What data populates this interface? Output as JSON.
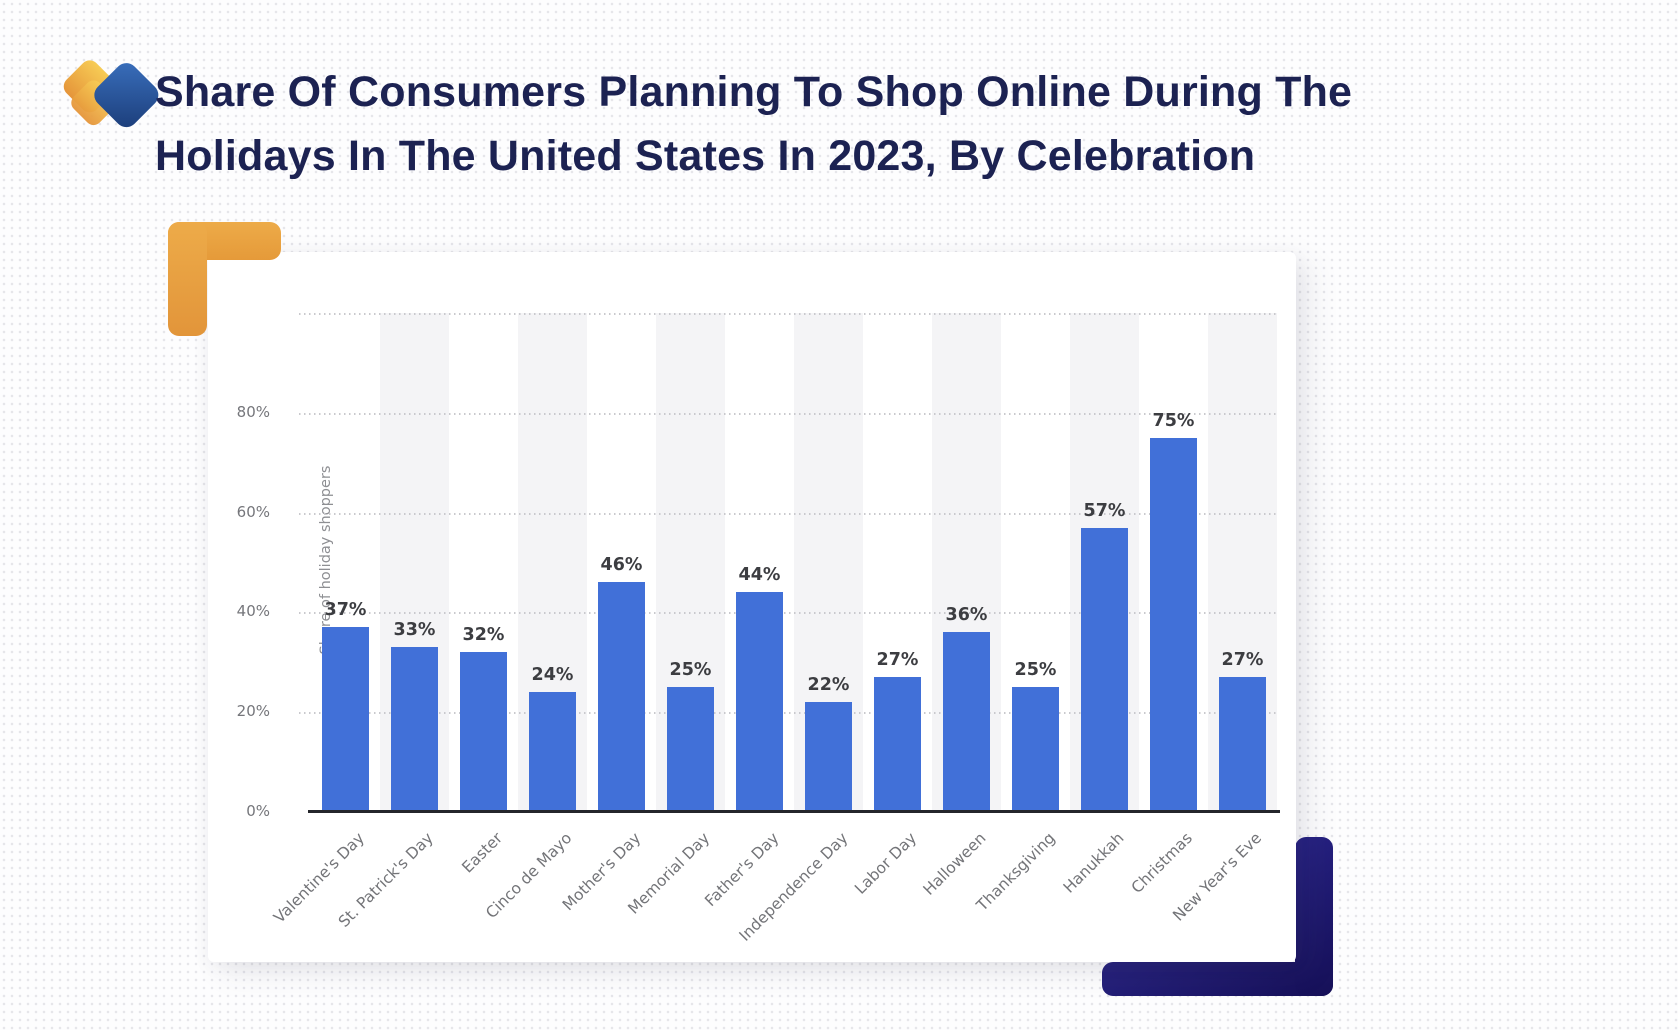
{
  "header": {
    "title_line1": "Share Of Consumers Planning To Shop Online During The",
    "title_line2": "Holidays In The United States In 2023, By Celebration",
    "title_color": "#1c2252",
    "logo_colors": {
      "yellow_top": "#F7CC55",
      "yellow_bottom": "#E5953A",
      "blue_top": "#3A70BE",
      "blue_bottom": "#1B3C78"
    }
  },
  "decorations": {
    "orange_accent": "#E79F3D",
    "navy_accent": "#1d1870"
  },
  "chart_data": {
    "type": "bar",
    "title": "",
    "categories": [
      "Valentine's Day",
      "St. Patrick's Day",
      "Easter",
      "Cinco de Mayo",
      "Mother's Day",
      "Memorial Day",
      "Father's Day",
      "Independence Day",
      "Labor Day",
      "Halloween",
      "Thanksgiving",
      "Hanukkah",
      "Christmas",
      "New Year's Eve"
    ],
    "values": [
      37,
      33,
      32,
      24,
      46,
      25,
      44,
      22,
      27,
      36,
      25,
      57,
      75,
      27
    ],
    "value_labels": [
      "37%",
      "33%",
      "32%",
      "24%",
      "46%",
      "25%",
      "44%",
      "22%",
      "27%",
      "36%",
      "25%",
      "57%",
      "75%",
      "27%"
    ],
    "xlabel": "",
    "ylabel": "Share of holiday shoppers",
    "ylim": [
      0,
      100
    ],
    "yticks": [
      0,
      20,
      40,
      60,
      80
    ],
    "ytick_labels": [
      "0%",
      "20%",
      "40%",
      "60%",
      "80%"
    ],
    "grid_values": [
      20,
      40,
      60,
      80,
      100
    ],
    "grid_style": "dotted horizontal",
    "bar_color": "#4170d8",
    "stripe_color": "#f4f4f6",
    "legend": null
  }
}
